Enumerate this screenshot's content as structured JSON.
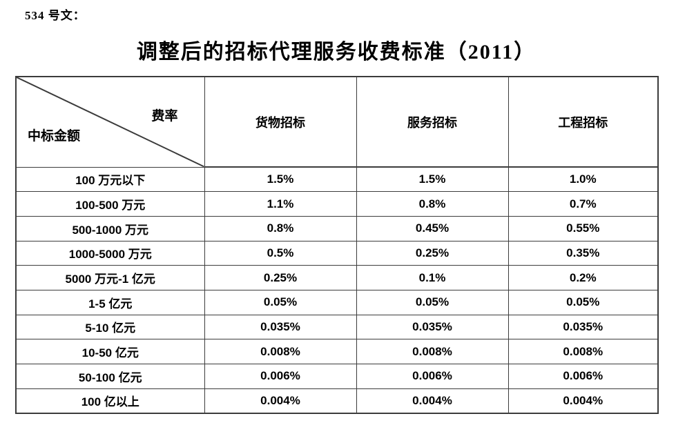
{
  "document": {
    "doc_label": "534 号文：",
    "title": "调整后的招标代理服务收费标准（2011）"
  },
  "table": {
    "corner": {
      "top_right": "费率",
      "bottom_left": "中标金额"
    },
    "columns": [
      "货物招标",
      "服务招标",
      "工程招标"
    ],
    "rows": [
      {
        "label": "100 万元以下",
        "values": [
          "1.5%",
          "1.5%",
          "1.0%"
        ]
      },
      {
        "label": "100-500 万元",
        "values": [
          "1.1%",
          "0.8%",
          "0.7%"
        ]
      },
      {
        "label": "500-1000 万元",
        "values": [
          "0.8%",
          "0.45%",
          "0.55%"
        ]
      },
      {
        "label": "1000-5000 万元",
        "values": [
          "0.5%",
          "0.25%",
          "0.35%"
        ]
      },
      {
        "label": "5000 万元-1 亿元",
        "values": [
          "0.25%",
          "0.1%",
          "0.2%"
        ]
      },
      {
        "label": "1-5 亿元",
        "values": [
          "0.05%",
          "0.05%",
          "0.05%"
        ]
      },
      {
        "label": "5-10 亿元",
        "values": [
          "0.035%",
          "0.035%",
          "0.035%"
        ]
      },
      {
        "label": "10-50 亿元",
        "values": [
          "0.008%",
          "0.008%",
          "0.008%"
        ]
      },
      {
        "label": "50-100 亿元",
        "values": [
          "0.006%",
          "0.006%",
          "0.006%"
        ]
      },
      {
        "label": "100 亿以上",
        "values": [
          "0.004%",
          "0.004%",
          "0.004%"
        ]
      }
    ]
  },
  "colors": {
    "border": "#3b3b3b",
    "text": "#000000",
    "background": "#ffffff"
  }
}
